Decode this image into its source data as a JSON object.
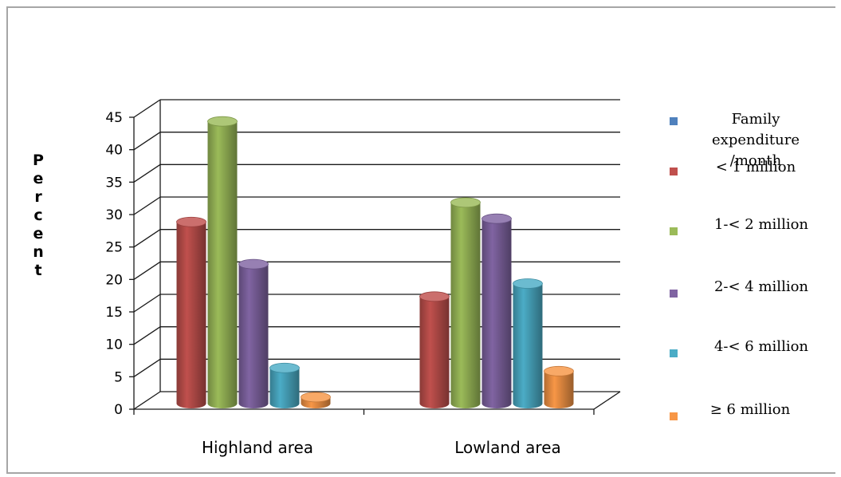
{
  "chart_data": {
    "type": "bar",
    "ylabel": "Percent",
    "ylim": [
      0,
      45
    ],
    "yticks": [
      "0",
      "5",
      "10",
      "15",
      "20",
      "25",
      "30",
      "35",
      "40",
      "45"
    ],
    "categories": [
      "Highland area",
      "Lowland area"
    ],
    "legend_title": "Family expenditure /month",
    "legend_position": "right",
    "series": [
      {
        "name": "< 1 million",
        "color": "#c0504d",
        "values": [
          28,
          16.5
        ]
      },
      {
        "name": "1-< 2 million",
        "color": "#9bbb59",
        "values": [
          43.5,
          31
        ]
      },
      {
        "name": "2-< 4 million",
        "color": "#8064a2",
        "values": [
          21.5,
          28.5
        ]
      },
      {
        "name": "4-< 6 million",
        "color": "#4bacc6",
        "values": [
          5.5,
          18.5
        ]
      },
      {
        "name": "≥ 6 million",
        "color": "#f79646",
        "values": [
          1,
          5
        ]
      }
    ],
    "legend_title_color": "#4f81bd",
    "grid": true
  }
}
